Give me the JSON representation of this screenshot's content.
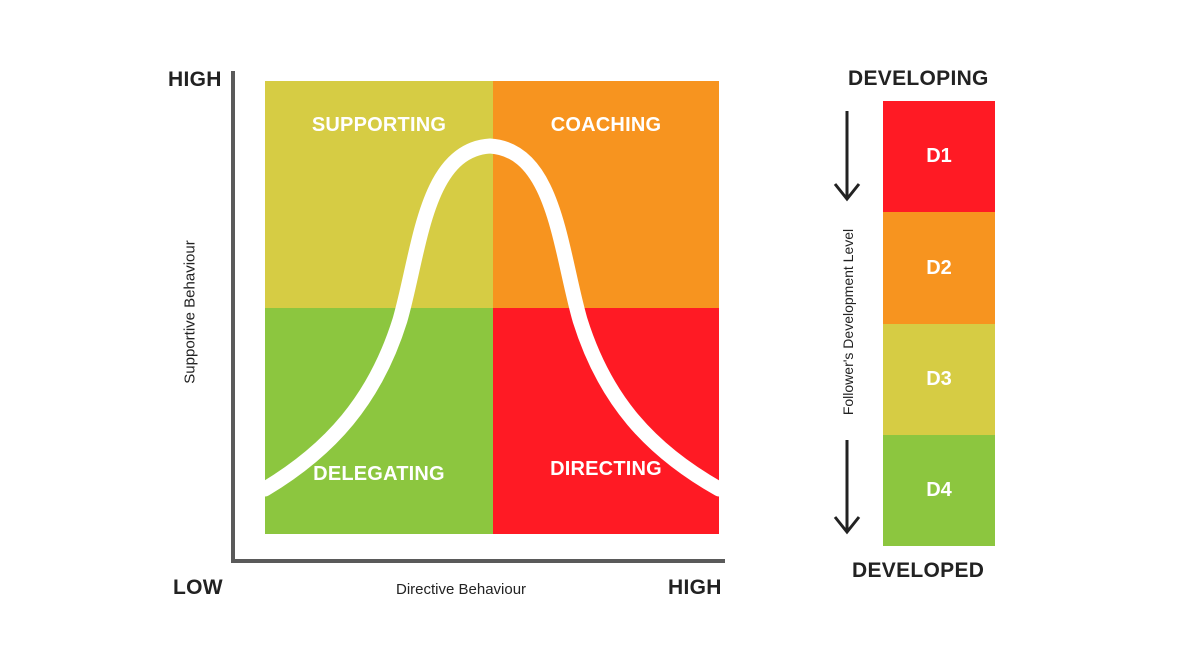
{
  "matrix": {
    "y_axis_high": "HIGH",
    "y_axis_low": "LOW",
    "x_axis_high": "HIGH",
    "y_axis_title": "Supportive Behaviour",
    "x_axis_title": "Directive Behaviour",
    "quadrants": {
      "supporting": {
        "label": "SUPPORTING",
        "color": "#d6cc44"
      },
      "coaching": {
        "label": "COACHING",
        "color": "#f7941f"
      },
      "delegating": {
        "label": "DELEGATING",
        "color": "#8cc63f"
      },
      "directing": {
        "label": "DIRECTING",
        "color": "#ff1a24"
      }
    },
    "curve_color": "#ffffff",
    "axis_color": "#5a5a5a"
  },
  "development": {
    "top_label": "DEVELOPING",
    "bottom_label": "DEVELOPED",
    "axis_title": "Follower's Development Level",
    "levels": [
      {
        "label": "D1",
        "color": "#ff1a24"
      },
      {
        "label": "D2",
        "color": "#f7941f"
      },
      {
        "label": "D3",
        "color": "#d6cc44"
      },
      {
        "label": "D4",
        "color": "#8cc63f"
      }
    ],
    "arrow_color": "#222222"
  }
}
